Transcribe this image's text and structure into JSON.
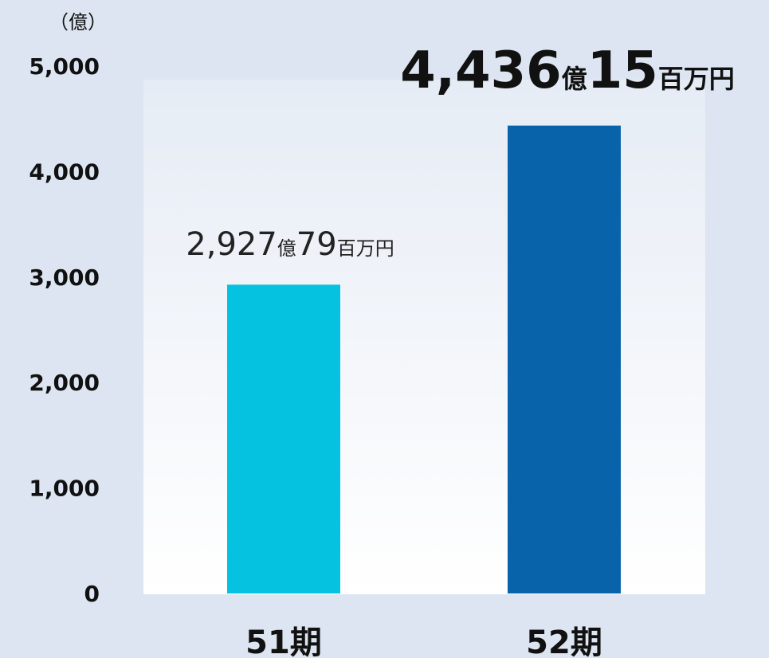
{
  "chart_data": {
    "type": "bar",
    "unit_label": "（億）",
    "categories": [
      "51期",
      "52期"
    ],
    "values": [
      2927.79,
      4436.15
    ],
    "colors": [
      "#05c3e0",
      "#0863aa"
    ],
    "ylim": [
      0,
      5000
    ],
    "yticks": [
      "0",
      "1,000",
      "2,000",
      "3,000",
      "4,000",
      "5,000"
    ],
    "grid": false,
    "data_labels": [
      {
        "parts": [
          {
            "text": "2,927",
            "role": "num"
          },
          {
            "text": "億",
            "role": "unit"
          },
          {
            "text": "79",
            "role": "num"
          },
          {
            "text": "百万円",
            "role": "unit"
          }
        ],
        "emphasis": false
      },
      {
        "parts": [
          {
            "text": "4,436",
            "role": "num"
          },
          {
            "text": "億",
            "role": "unit"
          },
          {
            "text": "15",
            "role": "num"
          },
          {
            "text": "百万円",
            "role": "unit"
          }
        ],
        "emphasis": true
      }
    ]
  }
}
